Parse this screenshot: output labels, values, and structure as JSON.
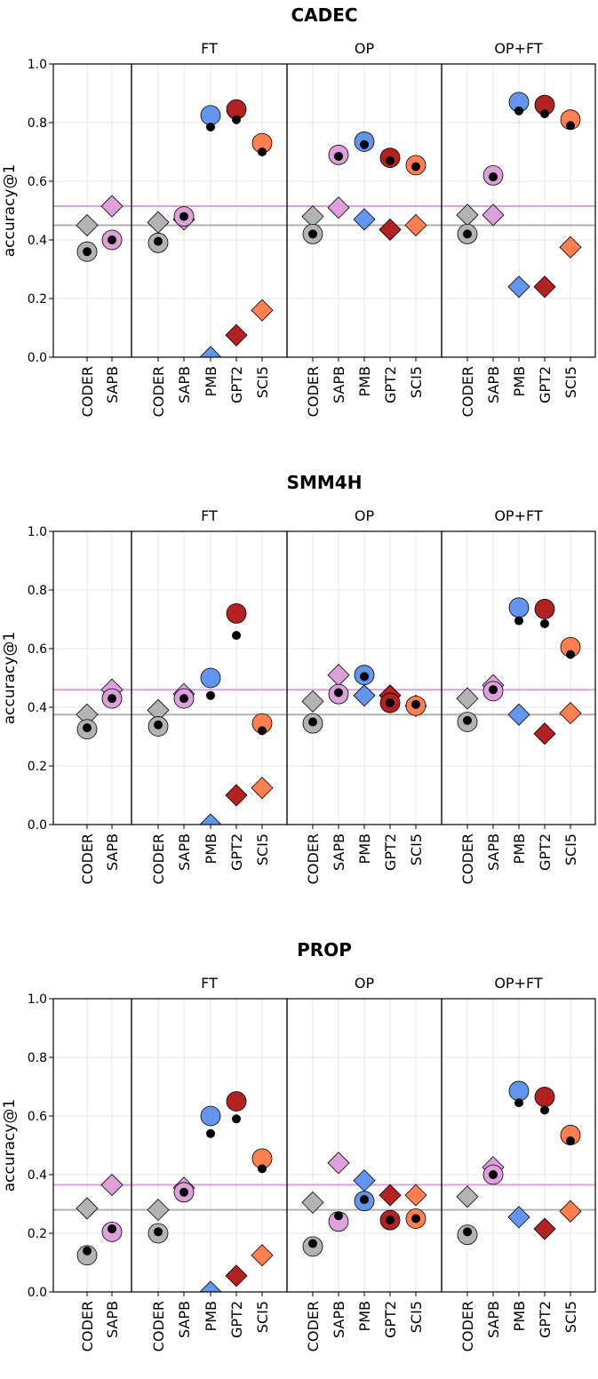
{
  "colors": {
    "CODER": "#b3b3b3",
    "SAPB": "#dda0dd",
    "PMB": "#6495ed",
    "GPT2": "#b22222",
    "SCI5": "#ff7f50",
    "dot": "#000000",
    "grid": "#e6e6e6"
  },
  "chart_data": [
    {
      "type": "scatter",
      "title": "CADEC",
      "ylabel": "accuracy@1",
      "ylim": [
        0,
        1
      ],
      "yticks": [
        "0.0",
        "0.2",
        "0.4",
        "0.6",
        "0.8",
        "1.0"
      ],
      "grid": true,
      "hlines": {
        "SAPB": 0.515,
        "CODER": 0.45
      },
      "panels": [
        {
          "title": "",
          "categories": [
            "CODER",
            "SAPB"
          ],
          "circle": [
            0.36,
            0.4
          ],
          "dot": [
            0.36,
            0.4
          ],
          "diamond": [
            0.45,
            0.515
          ]
        },
        {
          "title": "FT",
          "categories": [
            "CODER",
            "SAPB",
            "PMB",
            "GPT2",
            "SCI5"
          ],
          "circle": [
            0.39,
            0.48,
            0.825,
            0.845,
            0.73
          ],
          "dot": [
            0.395,
            0.48,
            0.785,
            0.81,
            0.7
          ],
          "diamond": [
            0.46,
            0.47,
            0.0,
            0.075,
            0.16
          ]
        },
        {
          "title": "OP",
          "categories": [
            "CODER",
            "SAPB",
            "PMB",
            "GPT2",
            "SCI5"
          ],
          "circle": [
            0.42,
            0.69,
            0.735,
            0.68,
            0.655
          ],
          "dot": [
            0.42,
            0.685,
            0.725,
            0.67,
            0.65
          ],
          "diamond": [
            0.48,
            0.51,
            0.47,
            0.435,
            0.45
          ]
        },
        {
          "title": "OP+FT",
          "categories": [
            "CODER",
            "SAPB",
            "PMB",
            "GPT2",
            "SCI5"
          ],
          "circle": [
            0.42,
            0.62,
            0.87,
            0.86,
            0.81
          ],
          "dot": [
            0.42,
            0.615,
            0.84,
            0.83,
            0.79
          ],
          "diamond": [
            0.485,
            0.485,
            0.24,
            0.24,
            0.375
          ]
        }
      ]
    },
    {
      "type": "scatter",
      "title": "SMM4H",
      "ylabel": "accuracy@1",
      "ylim": [
        0,
        1
      ],
      "yticks": [
        "0.0",
        "0.2",
        "0.4",
        "0.6",
        "0.8",
        "1.0"
      ],
      "grid": true,
      "hlines": {
        "SAPB": 0.46,
        "CODER": 0.375
      },
      "panels": [
        {
          "title": "",
          "categories": [
            "CODER",
            "SAPB"
          ],
          "circle": [
            0.325,
            0.43
          ],
          "dot": [
            0.33,
            0.43
          ],
          "diamond": [
            0.375,
            0.46
          ]
        },
        {
          "title": "FT",
          "categories": [
            "CODER",
            "SAPB",
            "PMB",
            "GPT2",
            "SCI5"
          ],
          "circle": [
            0.335,
            0.43,
            0.5,
            0.72,
            0.345
          ],
          "dot": [
            0.34,
            0.43,
            0.44,
            0.645,
            0.32
          ],
          "diamond": [
            0.39,
            0.445,
            0.0,
            0.1,
            0.125
          ]
        },
        {
          "title": "OP",
          "categories": [
            "CODER",
            "SAPB",
            "PMB",
            "GPT2",
            "SCI5"
          ],
          "circle": [
            0.345,
            0.445,
            0.51,
            0.415,
            0.405
          ],
          "dot": [
            0.35,
            0.45,
            0.505,
            0.415,
            0.41
          ],
          "diamond": [
            0.42,
            0.51,
            0.44,
            0.44,
            0.405
          ]
        },
        {
          "title": "OP+FT",
          "categories": [
            "CODER",
            "SAPB",
            "PMB",
            "GPT2",
            "SCI5"
          ],
          "circle": [
            0.35,
            0.455,
            0.74,
            0.735,
            0.605
          ],
          "dot": [
            0.355,
            0.46,
            0.695,
            0.685,
            0.58
          ],
          "diamond": [
            0.43,
            0.475,
            0.375,
            0.31,
            0.38
          ]
        }
      ]
    },
    {
      "type": "scatter",
      "title": "PROP",
      "ylabel": "accuracy@1",
      "ylim": [
        0,
        1
      ],
      "yticks": [
        "0.0",
        "0.2",
        "0.4",
        "0.6",
        "0.8",
        "1.0"
      ],
      "grid": true,
      "hlines": {
        "SAPB": 0.365,
        "CODER": 0.28
      },
      "panels": [
        {
          "title": "",
          "categories": [
            "CODER",
            "SAPB"
          ],
          "circle": [
            0.125,
            0.205
          ],
          "dot": [
            0.14,
            0.215
          ],
          "diamond": [
            0.285,
            0.365
          ]
        },
        {
          "title": "FT",
          "categories": [
            "CODER",
            "SAPB",
            "PMB",
            "GPT2",
            "SCI5"
          ],
          "circle": [
            0.2,
            0.34,
            0.6,
            0.65,
            0.455
          ],
          "dot": [
            0.205,
            0.34,
            0.54,
            0.59,
            0.42
          ],
          "diamond": [
            0.28,
            0.355,
            0.0,
            0.055,
            0.125
          ]
        },
        {
          "title": "OP",
          "categories": [
            "CODER",
            "SAPB",
            "PMB",
            "GPT2",
            "SCI5"
          ],
          "circle": [
            0.155,
            0.24,
            0.31,
            0.245,
            0.25
          ],
          "dot": [
            0.165,
            0.26,
            0.315,
            0.245,
            0.25
          ],
          "diamond": [
            0.305,
            0.44,
            0.38,
            0.33,
            0.33
          ]
        },
        {
          "title": "OP+FT",
          "categories": [
            "CODER",
            "SAPB",
            "PMB",
            "GPT2",
            "SCI5"
          ],
          "circle": [
            0.195,
            0.4,
            0.685,
            0.665,
            0.535
          ],
          "dot": [
            0.205,
            0.4,
            0.645,
            0.62,
            0.515
          ],
          "diamond": [
            0.325,
            0.425,
            0.255,
            0.215,
            0.275
          ]
        }
      ]
    }
  ]
}
